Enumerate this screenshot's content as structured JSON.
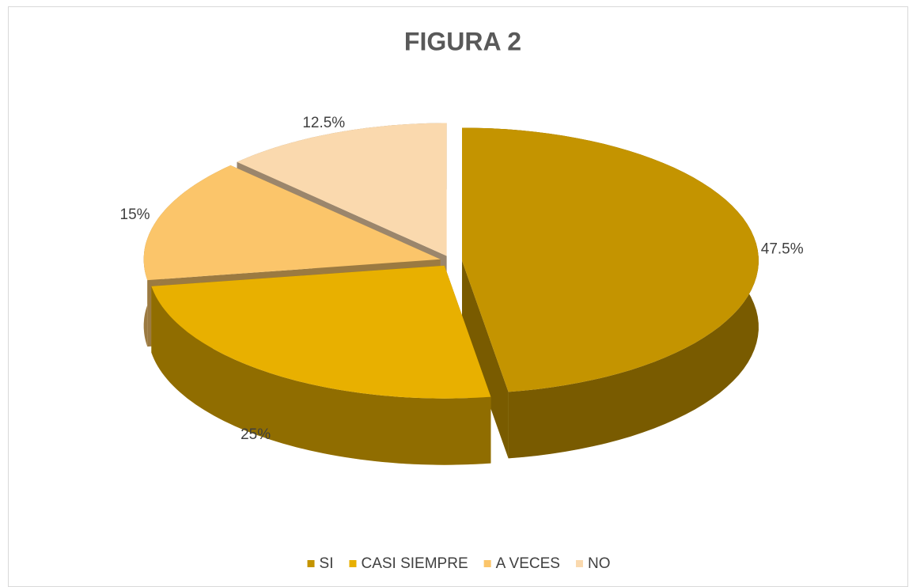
{
  "chart_data": {
    "type": "pie",
    "title": "FIGURA 2",
    "categories": [
      "SI",
      "CASI SIEMPRE",
      "A VECES",
      "NO"
    ],
    "values": [
      47.5,
      25,
      15,
      12.5
    ],
    "value_labels": [
      "47.5%",
      "25%",
      "15%",
      "12.5%"
    ],
    "colors": [
      "#c49400",
      "#e8b000",
      "#fbc56a",
      "#fad9ae"
    ],
    "legend": "bottom"
  }
}
